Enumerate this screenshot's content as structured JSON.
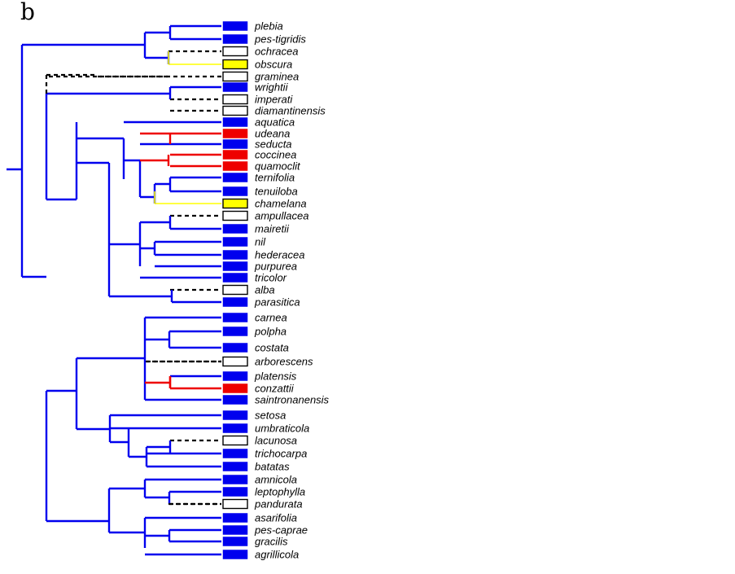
{
  "panel_label": "b",
  "colors": {
    "blue": "#0000ee",
    "red": "#ee0000",
    "yellow": "#ffff00",
    "white": "#ffffff",
    "dashed": "#000000"
  },
  "species": [
    {
      "name": "plebia",
      "state": "blue"
    },
    {
      "name": "pes-tigridis",
      "state": "blue"
    },
    {
      "name": "ochracea",
      "state": "white"
    },
    {
      "name": "obscura",
      "state": "yellow"
    },
    {
      "name": "graminea",
      "state": "white"
    },
    {
      "name": "wrightii",
      "state": "blue"
    },
    {
      "name": "imperati",
      "state": "white"
    },
    {
      "name": "diamantinensis",
      "state": "white"
    },
    {
      "name": "aquatica",
      "state": "blue"
    },
    {
      "name": "udeana",
      "state": "red"
    },
    {
      "name": "seducta",
      "state": "blue"
    },
    {
      "name": "coccinea",
      "state": "red"
    },
    {
      "name": "quamoclit",
      "state": "red"
    },
    {
      "name": "ternifolia",
      "state": "blue"
    },
    {
      "name": "tenuiloba",
      "state": "blue"
    },
    {
      "name": "chamelana",
      "state": "yellow"
    },
    {
      "name": "ampullacea",
      "state": "white"
    },
    {
      "name": "mairetii",
      "state": "blue"
    },
    {
      "name": "nil",
      "state": "blue"
    },
    {
      "name": "hederacea",
      "state": "blue"
    },
    {
      "name": "purpurea",
      "state": "blue"
    },
    {
      "name": "tricolor",
      "state": "blue"
    },
    {
      "name": "alba",
      "state": "white"
    },
    {
      "name": "parasitica",
      "state": "blue"
    },
    {
      "name": "carnea",
      "state": "blue"
    },
    {
      "name": "polpha",
      "state": "blue"
    },
    {
      "name": "costata",
      "state": "blue"
    },
    {
      "name": "arborescens",
      "state": "white"
    },
    {
      "name": "platensis",
      "state": "blue"
    },
    {
      "name": "conzattii",
      "state": "red"
    },
    {
      "name": "saintronanensis",
      "state": "blue"
    },
    {
      "name": "setosa",
      "state": "blue"
    },
    {
      "name": "umbraticola",
      "state": "blue"
    },
    {
      "name": "lacunosa",
      "state": "white"
    },
    {
      "name": "trichocarpa",
      "state": "blue"
    },
    {
      "name": "batatas",
      "state": "blue"
    },
    {
      "name": "amnicola",
      "state": "blue"
    },
    {
      "name": "leptophylla",
      "state": "blue"
    },
    {
      "name": "pandurata",
      "state": "white"
    },
    {
      "name": "asarifolia",
      "state": "blue"
    },
    {
      "name": "pes-caprae",
      "state": "blue"
    },
    {
      "name": "gracilis",
      "state": "blue"
    },
    {
      "name": "agrillicola",
      "state": "blue"
    }
  ]
}
